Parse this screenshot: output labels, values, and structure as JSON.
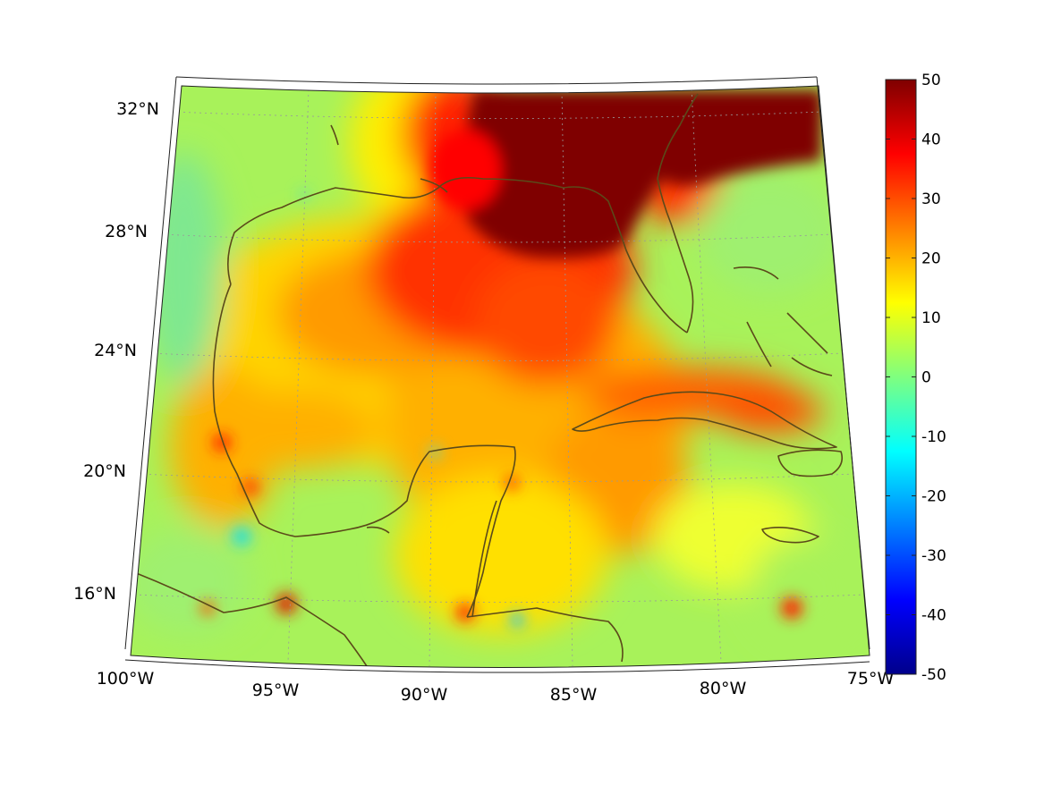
{
  "map": {
    "projection": "lambert-conformal-conic",
    "extent": {
      "lon": [
        -100,
        -75
      ],
      "lat": [
        14,
        32
      ]
    },
    "lat_labels": [
      "32°N",
      "28°N",
      "24°N",
      "20°N",
      "16°N"
    ],
    "lon_labels": [
      "100°W",
      "95°W",
      "90°W",
      "85°W",
      "80°W",
      "75°W"
    ],
    "coastline_color": "#5b4a1a",
    "gridline_style": "dotted",
    "colormap": "jet"
  },
  "colorbar": {
    "min": -50,
    "max": 50,
    "ticks": [
      "50",
      "40",
      "30",
      "20",
      "10",
      "0",
      "-10",
      "-20",
      "-30",
      "-40",
      "-50"
    ]
  }
}
